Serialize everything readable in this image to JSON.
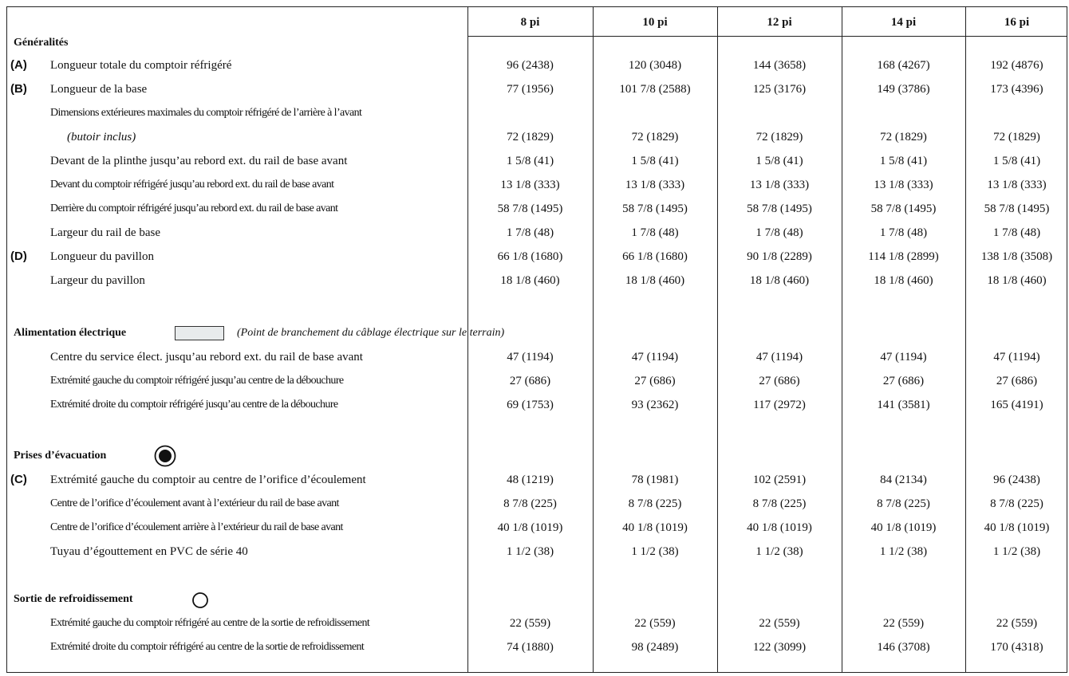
{
  "headers": [
    "8 pi",
    "10 pi",
    "12 pi",
    "14 pi",
    "16 pi"
  ],
  "sections": {
    "generalites": "Généralités",
    "alimentation": "Alimentation électrique",
    "alimentation_note": "(Point de branchement du câblage électrique sur le terrain)",
    "evacuation": "Prises d’évacuation",
    "refroidissement": "Sortie de refroidissement"
  },
  "rows": [
    {
      "code": "(A)",
      "label": "Longueur totale du comptoir réfrigéré",
      "values": [
        "96 (2438)",
        "120 (3048)",
        "144 (3658)",
        "168 (4267)",
        "192 (4876)"
      ]
    },
    {
      "code": "(B)",
      "label": "Longueur de la base",
      "values": [
        "77 (1956)",
        "101 7/8 (2588)",
        "125 (3176)",
        "149 (3786)",
        "173 (4396)"
      ]
    },
    {
      "code": "",
      "label": "Dimensions extérieures maximales du comptoir réfrigéré de l’arrière à l’avant",
      "values": [
        "",
        "",
        "",
        "",
        ""
      ]
    },
    {
      "code": "",
      "label": "(butoir inclus)",
      "values": [
        "72 (1829)",
        "72 (1829)",
        "72 (1829)",
        "72 (1829)",
        "72 (1829)"
      ]
    },
    {
      "code": "",
      "label": "Devant de la plinthe jusqu’au rebord ext. du rail de base avant",
      "values": [
        "1 5/8 (41)",
        "1 5/8 (41)",
        "1 5/8 (41)",
        "1 5/8 (41)",
        "1 5/8 (41)"
      ]
    },
    {
      "code": "",
      "label": "Devant du comptoir réfrigéré jusqu’au rebord ext. du rail de base avant",
      "values": [
        "13 1/8 (333)",
        "13 1/8 (333)",
        "13 1/8 (333)",
        "13 1/8 (333)",
        "13 1/8 (333)"
      ]
    },
    {
      "code": "",
      "label": "Derrière du comptoir réfrigéré jusqu’au rebord ext. du rail de base avant",
      "values": [
        "58 7/8 (1495)",
        "58 7/8 (1495)",
        "58 7/8 (1495)",
        "58 7/8 (1495)",
        "58 7/8 (1495)"
      ]
    },
    {
      "code": "",
      "label": "Largeur du rail de base",
      "values": [
        "1 7/8 (48)",
        "1 7/8 (48)",
        "1 7/8 (48)",
        "1 7/8 (48)",
        "1 7/8 (48)"
      ]
    },
    {
      "code": "(D)",
      "label": "Longueur du pavillon",
      "values": [
        "66 1/8 (1680)",
        "66 1/8 (1680)",
        "90 1/8 (2289)",
        "114 1/8 (2899)",
        "138 1/8 (3508)"
      ]
    },
    {
      "code": "",
      "label": "Largeur du pavillon",
      "values": [
        "18 1/8 (460)",
        "18 1/8 (460)",
        "18 1/8 (460)",
        "18 1/8 (460)",
        "18 1/8 (460)"
      ]
    },
    {
      "code": "",
      "label": "Centre du service élect. jusqu’au rebord ext. du rail de base avant",
      "values": [
        "47 (1194)",
        "47 (1194)",
        "47 (1194)",
        "47 (1194)",
        "47 (1194)"
      ]
    },
    {
      "code": "",
      "label": "Extrémité gauche du comptoir réfrigéré jusqu’au centre de la débouchure",
      "values": [
        "27 (686)",
        "27 (686)",
        "27 (686)",
        "27 (686)",
        "27 (686)"
      ]
    },
    {
      "code": "",
      "label": "Extrémité droite du comptoir réfrigéré jusqu’au centre de la débouchure",
      "values": [
        "69 (1753)",
        "93 (2362)",
        "117 (2972)",
        "141 (3581)",
        "165 (4191)"
      ]
    },
    {
      "code": "(C)",
      "label": "Extrémité gauche du comptoir au centre de l’orifice d’écoulement",
      "values": [
        "48 (1219)",
        "78 (1981)",
        "102 (2591)",
        "84 (2134)",
        "96 (2438)"
      ]
    },
    {
      "code": "",
      "label": "Centre de l’orifice d’écoulement avant à l’extérieur du rail de base avant",
      "values": [
        "8 7/8 (225)",
        "8 7/8 (225)",
        "8 7/8 (225)",
        "8 7/8 (225)",
        "8 7/8 (225)"
      ]
    },
    {
      "code": "",
      "label": "Centre de l’orifice d’écoulement arrière à l’extérieur du rail de base avant",
      "values": [
        "40 1/8 (1019)",
        "40 1/8 (1019)",
        "40 1/8 (1019)",
        "40 1/8 (1019)",
        "40 1/8 (1019)"
      ]
    },
    {
      "code": "",
      "label": "Tuyau d’égouttement en PVC de série 40",
      "values": [
        "1 1/2 (38)",
        "1 1/2 (38)",
        "1 1/2 (38)",
        "1 1/2 (38)",
        "1 1/2 (38)"
      ]
    },
    {
      "code": "",
      "label": "Extrémité gauche du comptoir réfrigéré au centre de la sortie de refroidissement",
      "values": [
        "22 (559)",
        "22 (559)",
        "22 (559)",
        "22 (559)",
        "22 (559)"
      ]
    },
    {
      "code": "",
      "label": "Extrémité droite du comptoir réfrigéré au centre de la sortie de refroidissement",
      "values": [
        "74 (1880)",
        "98 (2489)",
        "122 (3099)",
        "146 (3708)",
        "170 (4318)"
      ]
    }
  ],
  "icons": {
    "swatch_color": "#e8ebec",
    "drain_icon": "filled-circle-in-ring",
    "cooling_icon": "open-circle"
  }
}
